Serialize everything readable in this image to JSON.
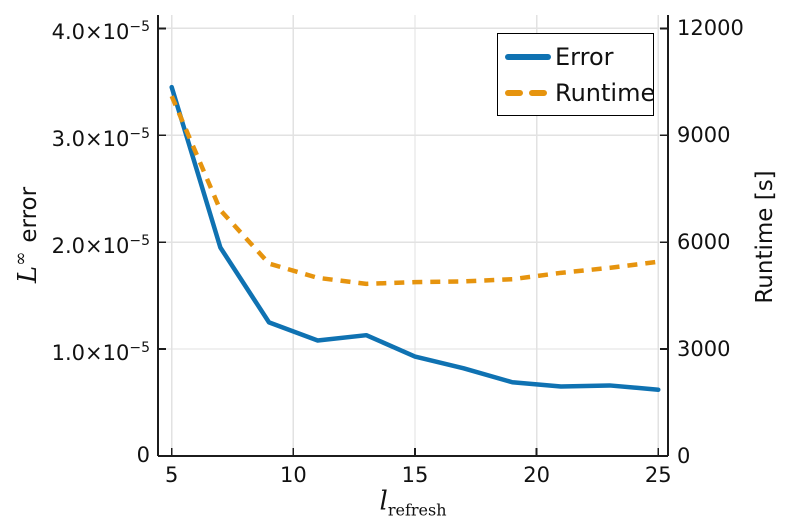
{
  "colors": {
    "error": "#0F72B2",
    "runtime": "#E6940E",
    "grid": "#E2E2E2",
    "spine": "#1C1C1C",
    "text": "#111111",
    "background": "#FFFFFF"
  },
  "chart_data": {
    "type": "line",
    "title": "",
    "xlabel": {
      "base": "l",
      "sub": "refresh"
    },
    "ylabel_left": {
      "base": "L",
      "sup": "∞",
      "rest": "error"
    },
    "ylabel_right": "Runtime [s]",
    "x": [
      5,
      7,
      9,
      11,
      13,
      15,
      17,
      19,
      21,
      23,
      25
    ],
    "series": [
      {
        "name": "Error",
        "axis": "left",
        "style": "solid",
        "color": "#0F72B2",
        "values": [
          3.45e-05,
          1.95e-05,
          1.25e-05,
          1.08e-05,
          1.13e-05,
          9.3e-06,
          8.2e-06,
          6.9e-06,
          6.5e-06,
          6.6e-06,
          6.2e-06
        ]
      },
      {
        "name": "Runtime",
        "axis": "right",
        "style": "dashed",
        "color": "#E6940E",
        "values": [
          10100,
          6900,
          5400,
          5000,
          4830,
          4880,
          4900,
          4960,
          5140,
          5280,
          5450
        ]
      }
    ],
    "axes": {
      "x": {
        "lim": [
          4.437,
          25.4
        ],
        "ticks": [
          {
            "v": 5,
            "t": "5"
          },
          {
            "v": 10,
            "t": "10"
          },
          {
            "v": 15,
            "t": "15"
          },
          {
            "v": 20,
            "t": "20"
          },
          {
            "v": 25,
            "t": "25"
          }
        ]
      },
      "left": {
        "lim": [
          0,
          4.125e-05
        ],
        "ticks": [
          {
            "v": 0,
            "t": "0"
          },
          {
            "v": 1e-05,
            "t": "1.0×10",
            "e": "−5"
          },
          {
            "v": 2e-05,
            "t": "2.0×10",
            "e": "−5"
          },
          {
            "v": 3e-05,
            "t": "3.0×10",
            "e": "−5"
          },
          {
            "v": 4e-05,
            "t": "4.0×10",
            "e": "−5"
          }
        ]
      },
      "right": {
        "lim": [
          0,
          12375
        ],
        "ticks": [
          {
            "v": 0,
            "t": "0"
          },
          {
            "v": 3000,
            "t": "3000"
          },
          {
            "v": 6000,
            "t": "6000"
          },
          {
            "v": 9000,
            "t": "9000"
          },
          {
            "v": 12000,
            "t": "12000"
          }
        ]
      }
    },
    "legend": {
      "position": "top-right",
      "entries": [
        "Error",
        "Runtime"
      ]
    },
    "grid": true
  }
}
